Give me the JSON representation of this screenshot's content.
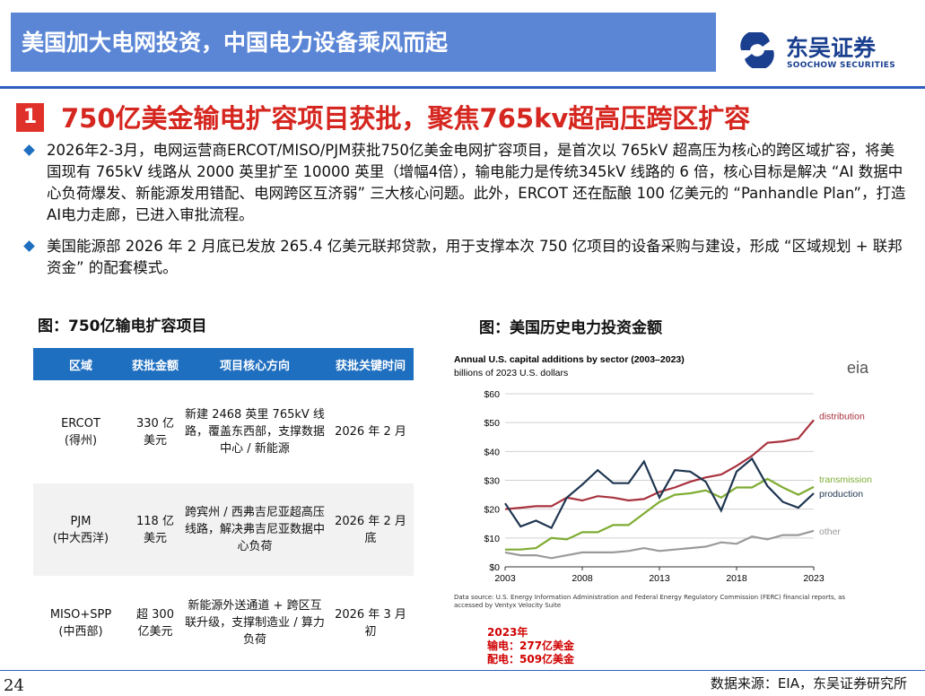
{
  "header": {
    "title": "美国加大电网投资，中国电力设备乘风而起",
    "logo_cn": "东吴证券",
    "logo_en": "SOOCHOW SECURITIES"
  },
  "section": {
    "number": "1",
    "title": "750亿美金输电扩容项目获批，聚焦765kv超高压跨区扩容"
  },
  "bullets": [
    "2026年2-3月，电网运营商ERCOT/MISO/PJM获批750亿美金电网扩容项目，是首次以 765kV 超高压为核心的跨区域扩容，将美国现有 765kV 线路从 2000 英里扩至 10000 英里（增幅4倍），输电能力是传统345kV 线路的 6 倍，核心目标是解决 “AI 数据中心负荷爆发、新能源发用错配、电网跨区互济弱” 三大核心问题。此外，ERCOT 还在酝酿 100 亿美元的 “Panhandle Plan”，打造AI电力走廊，已进入审批流程。",
    "美国能源部 2026 年 2 月底已发放 265.4 亿美元联邦贷款，用于支撑本次 750 亿项目的设备采购与建设，形成 “区域规划 + 联邦资金” 的配套模式。"
  ],
  "table": {
    "caption": "图：750亿输电扩容项目",
    "headers": [
      "区域",
      "获批金额",
      "项目核心方向",
      "获批关键时间"
    ],
    "rows": [
      [
        "ERCOT\n(得州)",
        "330 亿美元",
        "新建 2468 英里 765kV 线路，覆盖东西部，支撑数据中心 / 新能源",
        "2026 年 2 月"
      ],
      [
        "PJM\n(中大西洋)",
        "118 亿美元",
        "跨宾州 / 西弗吉尼亚超高压线路，解决弗吉尼亚数据中心负荷",
        "2026 年 2 月底"
      ],
      [
        "MISO+SPP\n(中西部)",
        "超 300 亿美元",
        "新能源外送通道 + 跨区互联升级，支撑制造业 / 算力负荷",
        "2026 年 3 月初"
      ]
    ]
  },
  "chart_caption": "图：美国历史电力投资金额",
  "chart_data": {
    "type": "line",
    "title": "Annual U.S. capital additions by sector (2003–2023)",
    "subtitle": "billions of 2023 U.S. dollars",
    "brand": "eia",
    "source": "Data source: U.S. Energy Information Administration and Federal Energy Regulatory Commission (FERC) financial reports, as accessed by Ventyx Velocity Suite",
    "x": [
      2003,
      2004,
      2005,
      2006,
      2007,
      2008,
      2009,
      2010,
      2011,
      2012,
      2013,
      2014,
      2015,
      2016,
      2017,
      2018,
      2019,
      2020,
      2021,
      2022,
      2023
    ],
    "xlim": [
      2003,
      2023
    ],
    "xticks": [
      2003,
      2008,
      2013,
      2018,
      2023
    ],
    "ylim": [
      0,
      60
    ],
    "yticks": [
      {
        "value": 0,
        "label": "$0"
      },
      {
        "value": 10,
        "label": "$10"
      },
      {
        "value": 20,
        "label": "$20"
      },
      {
        "value": 30,
        "label": "$30"
      },
      {
        "value": 40,
        "label": "$40"
      },
      {
        "value": 50,
        "label": "$50"
      },
      {
        "value": 60,
        "label": "$60"
      }
    ],
    "grid": true,
    "series": [
      {
        "name": "distribution",
        "color": "#a8323e",
        "values": [
          20,
          20.5,
          21,
          21,
          24,
          23,
          24.5,
          24,
          23,
          23.5,
          26,
          27.5,
          29.5,
          31,
          32,
          35,
          38.5,
          43,
          43.5,
          44.5,
          50.9
        ]
      },
      {
        "name": "transmission",
        "color": "#7fac32",
        "values": [
          6,
          6,
          6.5,
          10,
          9.5,
          12,
          12,
          14.5,
          14.5,
          18.5,
          22.5,
          25,
          25.5,
          26.5,
          24,
          27.5,
          27.5,
          30.5,
          27.5,
          25,
          27.7
        ]
      },
      {
        "name": "production",
        "color": "#1e3550",
        "values": [
          22,
          14,
          16,
          13.5,
          24,
          28.5,
          33.5,
          29,
          29,
          36.5,
          24,
          33.5,
          33,
          29.5,
          19.5,
          33,
          37.5,
          28,
          22.5,
          20.5,
          25.5
        ]
      },
      {
        "name": "other",
        "color": "#9a9a9a",
        "values": [
          5,
          4,
          4,
          3,
          4,
          5,
          5,
          5,
          5.5,
          6.5,
          5.5,
          6,
          6.5,
          7,
          8.5,
          8,
          10.5,
          9.5,
          11,
          11,
          12.5
        ]
      }
    ]
  },
  "notes": [
    "2023年",
    "输电：277亿美金",
    "配电：509亿美金"
  ],
  "footer": {
    "page": "24",
    "source": "数据来源：EIA，东吴证券研究所"
  }
}
